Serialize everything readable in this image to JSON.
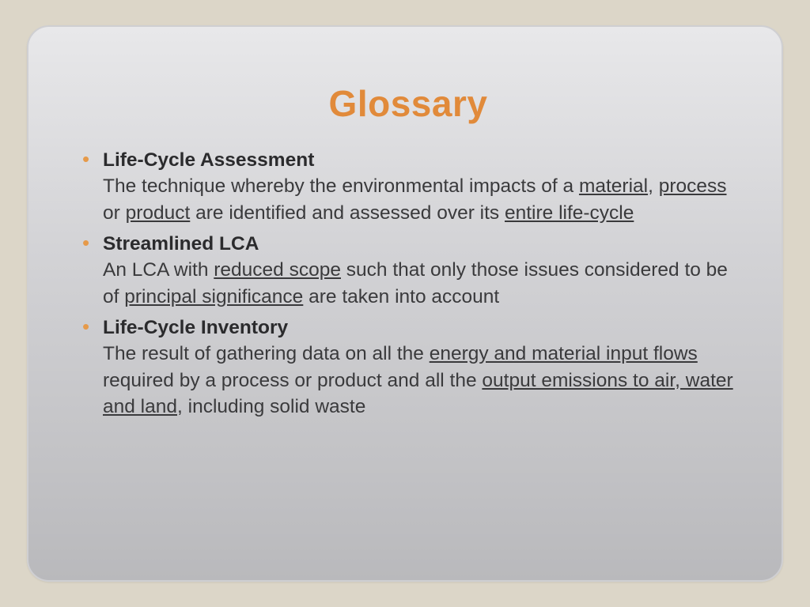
{
  "slide": {
    "title": "Glossary",
    "background_outer": "#dcd6c8",
    "card_gradient_top": "#e8e8ea",
    "card_gradient_bottom": "#b9b9bc",
    "card_border_color": "#cfcfd2",
    "card_border_radius": 28,
    "title_color": "#e18a3a",
    "title_fontsize": 46,
    "bullet_color": "#e69a4a",
    "body_color": "#3a3a3c",
    "body_fontsize": 24.5,
    "items": [
      {
        "term": "Life-Cycle Assessment",
        "def_before_1": "The technique whereby the environmental impacts of a ",
        "u1": "material",
        "sep1": ", ",
        "u2": "process",
        "sep2": " or ",
        "u3": "product",
        "def_mid": " are identified and assessed over its ",
        "u4": "entire life-cycle",
        "def_after": ""
      },
      {
        "term": "Streamlined LCA",
        "def_before_1": "An LCA with ",
        "u1": "reduced scope",
        "sep1": " such that only those issues considered to be of ",
        "u2": "principal significance",
        "sep2": " are taken into account",
        "u3": "",
        "def_mid": "",
        "u4": "",
        "def_after": ""
      },
      {
        "term": "Life-Cycle Inventory",
        "def_before_1": "The result of gathering data on all the ",
        "u1": "energy and material input flows",
        "sep1": " required by a process or product and all the ",
        "u2": "output emissions to air, water and land",
        "sep2": ", including solid waste",
        "u3": "",
        "def_mid": "",
        "u4": "",
        "def_after": ""
      }
    ]
  }
}
